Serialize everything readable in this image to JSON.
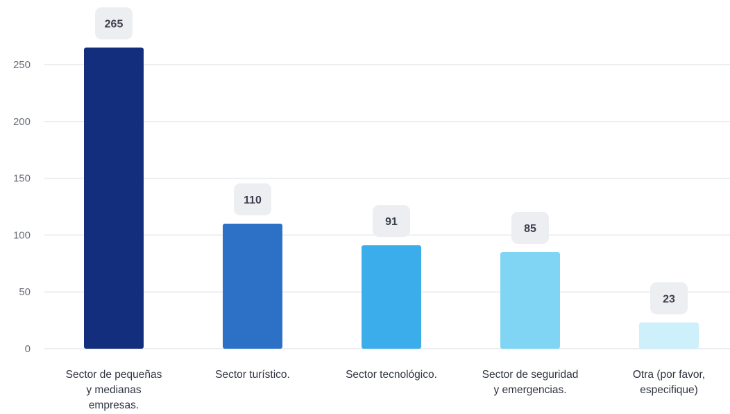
{
  "chart_data": {
    "type": "bar",
    "categories": [
      [
        "Sector de pequeñas",
        "y medianas",
        "empresas."
      ],
      [
        "Sector turístico."
      ],
      [
        "Sector tecnológico."
      ],
      [
        "Sector de seguridad",
        "y emergencias."
      ],
      [
        "Otra (por favor,",
        "especifique)"
      ]
    ],
    "values": [
      265,
      110,
      91,
      85,
      23
    ],
    "colors": [
      "#132e7c",
      "#2c71c6",
      "#3badea",
      "#7fd5f3",
      "#cdf0fb"
    ],
    "ylim": [
      0,
      250
    ],
    "yticks": [
      0,
      50,
      100,
      150,
      200,
      250
    ],
    "title": "",
    "xlabel": "",
    "ylabel": "",
    "grid": true,
    "legend": false
  }
}
